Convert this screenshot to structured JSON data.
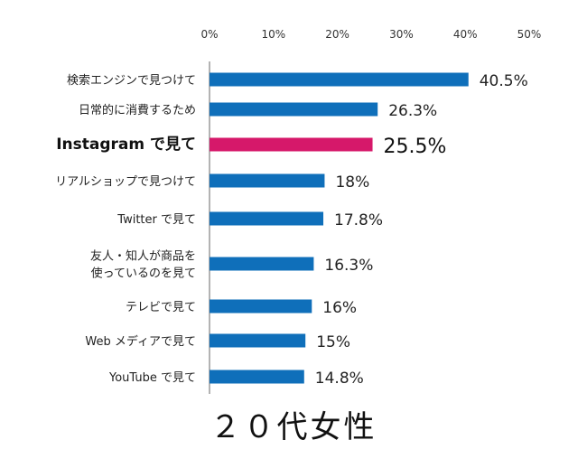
{
  "chart_data": {
    "type": "bar",
    "orientation": "horizontal",
    "title": "２０代女性",
    "xlabel": "",
    "ylabel": "",
    "xlim": [
      0,
      50
    ],
    "ticks": [
      {
        "value": 0,
        "label": "0%"
      },
      {
        "value": 10,
        "label": "10%"
      },
      {
        "value": 20,
        "label": "20%"
      },
      {
        "value": 30,
        "label": "30%"
      },
      {
        "value": 40,
        "label": "40%"
      },
      {
        "value": 50,
        "label": "50%"
      }
    ],
    "grid": false,
    "legend": "none",
    "colors": {
      "default": "#0f6fba",
      "highlight": "#d6186a"
    },
    "categories": [
      [
        "検索エンジンで見つけて"
      ],
      [
        "日常的に消費するため"
      ],
      [
        "Instagram で見て"
      ],
      [
        "リアルショップで見つけて"
      ],
      [
        "Twitter で見て"
      ],
      [
        "友人・知人が商品を",
        "使っているのを見て"
      ],
      [
        "テレビで見て"
      ],
      [
        "Web メディアで見て"
      ],
      [
        "YouTube で見て"
      ]
    ],
    "values": [
      40.5,
      26.3,
      25.5,
      18,
      17.8,
      16.3,
      16,
      15,
      14.8
    ],
    "value_labels": [
      "40.5%",
      "26.3%",
      "25.5%",
      "18%",
      "17.8%",
      "16.3%",
      "16%",
      "15%",
      "14.8%"
    ],
    "highlight_index": 2
  }
}
